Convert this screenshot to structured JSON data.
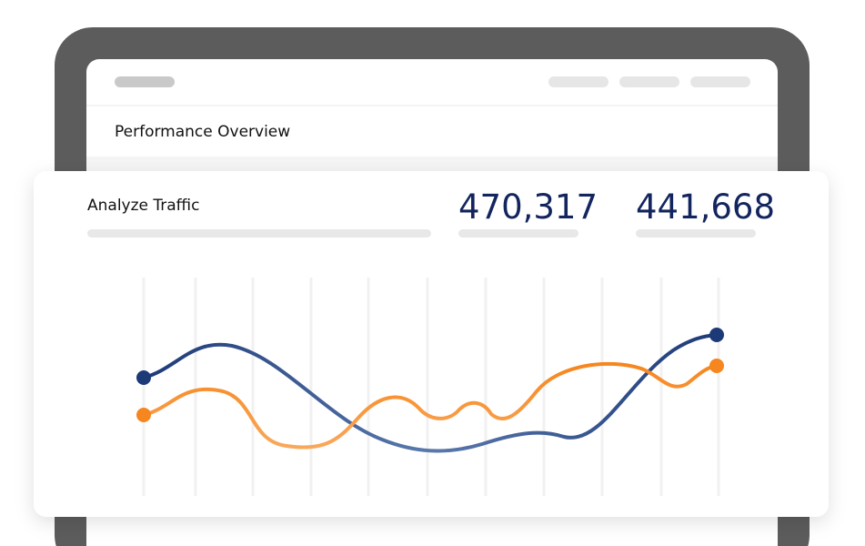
{
  "screen": {
    "title": "Performance Overview"
  },
  "card": {
    "title": "Analyze Traffic",
    "metrics": [
      "470,317",
      "441,668"
    ]
  }
}
